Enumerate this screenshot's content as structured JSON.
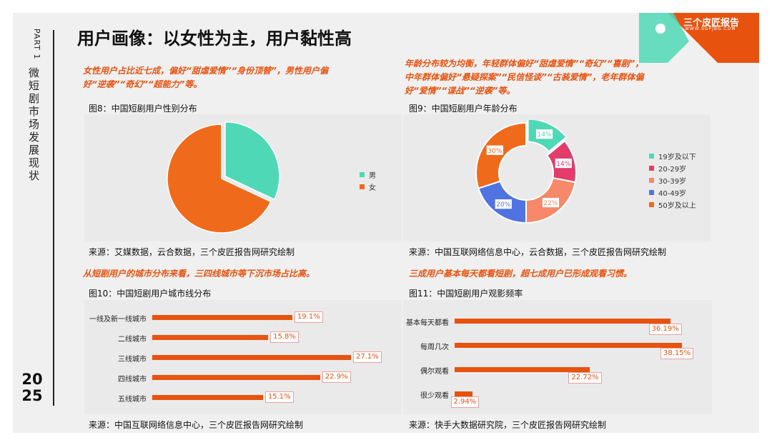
{
  "sidebar": {
    "part": "PART 1",
    "section_title": "微短剧市场发展现状",
    "year_top": "20",
    "year_bottom": "25"
  },
  "header": {
    "title": "用户画像：以女性为主，用户黏性高"
  },
  "logo": {
    "name": "三个皮匠报告",
    "site": "WWW.SGPJBG.COM"
  },
  "notes": {
    "gender": [
      "女性用户占比近七成，偏好“甜虐爱情”“身份顶替”，男性用户偏",
      "好“逆袭”“奇幻”“超能力”等。"
    ],
    "age": [
      "年龄分布较为均衡，年轻群体偏好“甜虐爱情”“奇幻”“喜剧”，",
      "中年群体偏好“悬疑探案”“民信怪谈”“古装爱情”，老年群体偏",
      "好“爱情”“谍战”“逆袭”等。"
    ],
    "city": "从短剧用户的城市分布来看，三四线城市等下沉市场占比高。",
    "freq": "三成用户基本每天都看短剧，超七成用户已形成观看习惯。"
  },
  "figures": {
    "fig8": {
      "label": "图8：中国短剧用户性别分布",
      "source": "来源：艾媒数据，云合数据，三个皮匠报告网研究绘制"
    },
    "fig9": {
      "label": "图9：中国短剧用户年龄分布",
      "source": "来源：中国互联网络信息中心，云合数据，三个皮匠报告网研究绘制"
    },
    "fig10": {
      "label": "图10：中国短剧用户城市线分布",
      "source": "来源：中国互联网络信息中心，三个皮匠报告网研究绘制"
    },
    "fig11": {
      "label": "图11：中国短剧用户观影频率",
      "source": "来源：快手大数据研究院，三个皮匠报告网研究绘制"
    }
  },
  "colors": {
    "accent": "#e8520f",
    "teal": "#4fd8b5",
    "pink": "#e23d6a",
    "salmon": "#f7886a",
    "blue": "#4f73e0",
    "orange": "#f06a1c"
  },
  "chart_data": [
    {
      "type": "pie",
      "categories": [
        "男",
        "女"
      ],
      "values": [
        32,
        68
      ],
      "colors": [
        "#4fd8b5",
        "#f06a1c"
      ],
      "legend_position": "right"
    },
    {
      "type": "pie",
      "donut": true,
      "categories": [
        "19岁及以下",
        "20-29岁",
        "30-39岁",
        "40-49岁",
        "50岁及以上"
      ],
      "values": [
        14,
        14,
        22,
        20,
        30
      ],
      "labels": [
        "14%",
        "14%",
        "22%",
        "20%",
        "30%"
      ],
      "colors": [
        "#4fd8b5",
        "#e23d6a",
        "#f7886a",
        "#4f73e0",
        "#f06a1c"
      ],
      "legend_position": "right"
    },
    {
      "type": "bar",
      "orientation": "horizontal",
      "categories": [
        "一线及新一线城市",
        "二线城市",
        "三线城市",
        "四线城市",
        "五线城市"
      ],
      "values": [
        19.1,
        15.8,
        27.1,
        22.9,
        15.1
      ],
      "labels": [
        "19.1%",
        "15.8%",
        "27.1%",
        "22.9%",
        "15.1%"
      ],
      "xlim": [
        0,
        27.1
      ]
    },
    {
      "type": "bar",
      "orientation": "horizontal",
      "categories": [
        "基本每天都看",
        "每周几次",
        "偶尔观看",
        "很少观看"
      ],
      "values": [
        36.19,
        38.15,
        22.72,
        2.94
      ],
      "labels": [
        "36.19%",
        "38.15%",
        "22.72%",
        "2.94%"
      ],
      "xlim": [
        0,
        38.15
      ]
    }
  ]
}
